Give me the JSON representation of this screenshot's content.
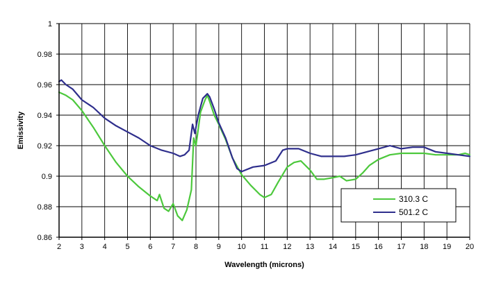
{
  "chart_data": {
    "type": "line",
    "title": "",
    "xlabel": "Wavelength (microns)",
    "ylabel": "Emissivity",
    "xlim": [
      2,
      20
    ],
    "ylim": [
      0.86,
      1
    ],
    "grid": true,
    "legend": "bottom-right",
    "x_ticks": [
      "2",
      "3",
      "4",
      "5",
      "6",
      "7",
      "8",
      "9",
      "10",
      "11",
      "12",
      "13",
      "14",
      "15",
      "16",
      "17",
      "18",
      "19",
      "20"
    ],
    "y_ticks": [
      "0.86",
      "0.88",
      "0.9",
      "0.92",
      "0.94",
      "0.96",
      "0.98",
      "1"
    ],
    "series": [
      {
        "name": "310.3 C",
        "color": "#4cc83c",
        "x": [
          2.0,
          2.3,
          2.6,
          3.0,
          3.5,
          4.0,
          4.5,
          5.0,
          5.5,
          6.0,
          6.3,
          6.4,
          6.6,
          6.8,
          7.0,
          7.2,
          7.4,
          7.6,
          7.8,
          7.9,
          8.0,
          8.2,
          8.4,
          8.5,
          8.6,
          8.8,
          9.0,
          9.3,
          9.6,
          10.0,
          10.4,
          10.8,
          11.0,
          11.3,
          11.6,
          12.0,
          12.3,
          12.6,
          13.0,
          13.3,
          13.6,
          14.0,
          14.3,
          14.6,
          15.0,
          15.3,
          15.6,
          16.0,
          16.5,
          17.0,
          17.5,
          18.0,
          18.5,
          19.0,
          19.5,
          19.8,
          20.0
        ],
        "values": [
          0.955,
          0.953,
          0.95,
          0.943,
          0.932,
          0.92,
          0.909,
          0.9,
          0.893,
          0.887,
          0.884,
          0.888,
          0.879,
          0.877,
          0.882,
          0.874,
          0.871,
          0.878,
          0.891,
          0.925,
          0.92,
          0.942,
          0.95,
          0.953,
          0.949,
          0.94,
          0.934,
          0.924,
          0.912,
          0.901,
          0.894,
          0.888,
          0.886,
          0.888,
          0.896,
          0.906,
          0.909,
          0.91,
          0.904,
          0.898,
          0.898,
          0.899,
          0.9,
          0.897,
          0.898,
          0.902,
          0.907,
          0.911,
          0.914,
          0.915,
          0.915,
          0.915,
          0.914,
          0.914,
          0.914,
          0.915,
          0.914
        ]
      },
      {
        "name": "501.2 C",
        "color": "#2e2e8c",
        "x": [
          2.0,
          2.1,
          2.3,
          2.6,
          3.0,
          3.5,
          4.0,
          4.5,
          5.0,
          5.5,
          6.0,
          6.5,
          7.0,
          7.3,
          7.5,
          7.7,
          7.85,
          7.95,
          8.1,
          8.3,
          8.5,
          8.6,
          8.8,
          9.0,
          9.3,
          9.6,
          9.8,
          10.0,
          10.5,
          11.0,
          11.5,
          11.8,
          12.0,
          12.5,
          13.0,
          13.5,
          14.0,
          14.5,
          15.0,
          15.5,
          16.0,
          16.5,
          17.0,
          17.5,
          18.0,
          18.5,
          19.0,
          19.5,
          20.0
        ],
        "values": [
          0.962,
          0.963,
          0.96,
          0.957,
          0.95,
          0.945,
          0.938,
          0.933,
          0.929,
          0.925,
          0.92,
          0.917,
          0.915,
          0.913,
          0.914,
          0.917,
          0.934,
          0.928,
          0.94,
          0.951,
          0.954,
          0.952,
          0.944,
          0.935,
          0.925,
          0.912,
          0.905,
          0.903,
          0.906,
          0.907,
          0.91,
          0.917,
          0.918,
          0.918,
          0.915,
          0.913,
          0.913,
          0.913,
          0.914,
          0.916,
          0.918,
          0.92,
          0.918,
          0.919,
          0.919,
          0.916,
          0.915,
          0.914,
          0.913
        ]
      }
    ]
  }
}
